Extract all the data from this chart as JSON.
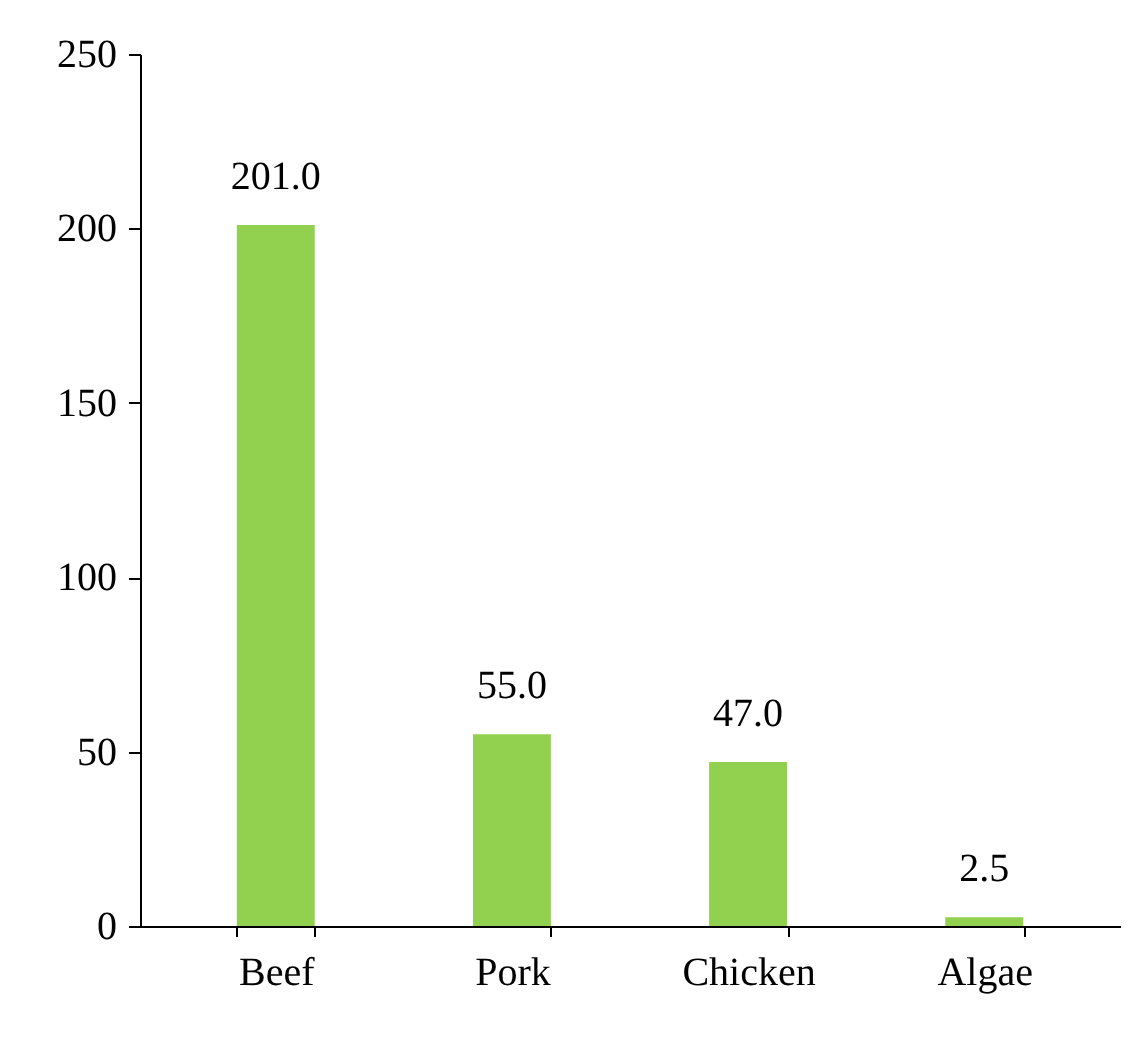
{
  "chart_data": {
    "type": "bar",
    "categories": [
      "Beef",
      "Pork",
      "Chicken",
      "Algae"
    ],
    "values": [
      201,
      55,
      47,
      2.5
    ],
    "value_labels": [
      "201.0",
      "55.0",
      "47.0",
      "2.5"
    ],
    "color": "#92d050",
    "ylim": [
      0,
      250
    ],
    "yticks": [
      0,
      50,
      100,
      150,
      200,
      250
    ],
    "grid": false
  }
}
